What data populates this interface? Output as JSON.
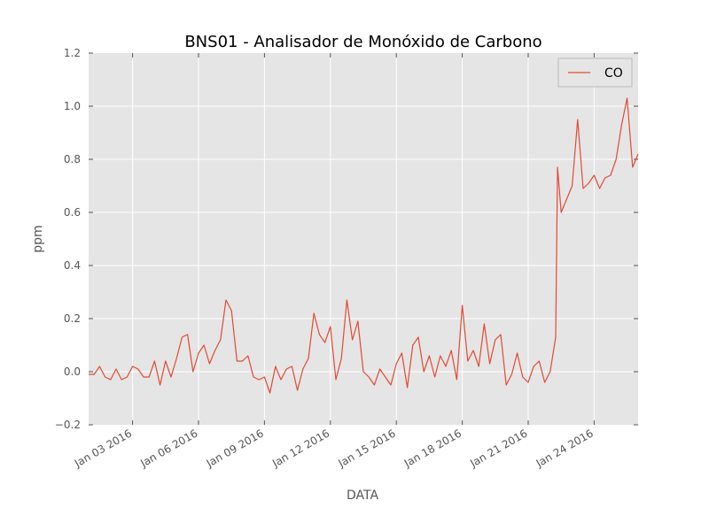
{
  "chart_data": {
    "type": "line",
    "title": "BNS01 - Analisador de Monóxido de Carbono",
    "xlabel": "DATA",
    "ylabel": "ppm",
    "xlim": [
      "2016-01-01",
      "2016-01-26"
    ],
    "ylim": [
      -0.2,
      1.2
    ],
    "yticks": [
      -0.2,
      0.0,
      0.2,
      0.4,
      0.6,
      0.8,
      1.0,
      1.2
    ],
    "ytick_labels": [
      "−0.2",
      "0.0",
      "0.2",
      "0.4",
      "0.6",
      "0.8",
      "1.0",
      "1.2"
    ],
    "xticks": [
      "2016-01-03",
      "2016-01-06",
      "2016-01-09",
      "2016-01-12",
      "2016-01-15",
      "2016-01-18",
      "2016-01-21",
      "2016-01-24"
    ],
    "xtick_labels": [
      "Jan 03 2016",
      "Jan 06 2016",
      "Jan 09 2016",
      "Jan 12 2016",
      "Jan 15 2016",
      "Jan 18 2016",
      "Jan 21 2016",
      "Jan 24 2016"
    ],
    "grid": true,
    "legend_position": "top-right",
    "series": [
      {
        "name": "CO",
        "color": "#e24a33",
        "points": [
          [
            "2016-01-01T00:00",
            -0.01
          ],
          [
            "2016-01-01T06:00",
            -0.01
          ],
          [
            "2016-01-01T12:00",
            0.02
          ],
          [
            "2016-01-01T18:00",
            -0.02
          ],
          [
            "2016-01-02T00:00",
            -0.03
          ],
          [
            "2016-01-02T06:00",
            0.01
          ],
          [
            "2016-01-02T12:00",
            -0.03
          ],
          [
            "2016-01-02T18:00",
            -0.02
          ],
          [
            "2016-01-03T00:00",
            0.02
          ],
          [
            "2016-01-03T06:00",
            0.01
          ],
          [
            "2016-01-03T12:00",
            -0.02
          ],
          [
            "2016-01-03T18:00",
            -0.02
          ],
          [
            "2016-01-04T00:00",
            0.04
          ],
          [
            "2016-01-04T06:00",
            -0.05
          ],
          [
            "2016-01-04T12:00",
            0.04
          ],
          [
            "2016-01-04T18:00",
            -0.02
          ],
          [
            "2016-01-05T00:00",
            0.05
          ],
          [
            "2016-01-05T06:00",
            0.13
          ],
          [
            "2016-01-05T12:00",
            0.14
          ],
          [
            "2016-01-05T18:00",
            0.0
          ],
          [
            "2016-01-06T00:00",
            0.07
          ],
          [
            "2016-01-06T06:00",
            0.1
          ],
          [
            "2016-01-06T12:00",
            0.03
          ],
          [
            "2016-01-06T18:00",
            0.08
          ],
          [
            "2016-01-07T00:00",
            0.12
          ],
          [
            "2016-01-07T06:00",
            0.27
          ],
          [
            "2016-01-07T12:00",
            0.23
          ],
          [
            "2016-01-07T18:00",
            0.04
          ],
          [
            "2016-01-08T00:00",
            0.04
          ],
          [
            "2016-01-08T06:00",
            0.06
          ],
          [
            "2016-01-08T12:00",
            -0.02
          ],
          [
            "2016-01-08T18:00",
            -0.03
          ],
          [
            "2016-01-09T00:00",
            -0.02
          ],
          [
            "2016-01-09T06:00",
            -0.08
          ],
          [
            "2016-01-09T12:00",
            0.02
          ],
          [
            "2016-01-09T18:00",
            -0.03
          ],
          [
            "2016-01-10T00:00",
            0.01
          ],
          [
            "2016-01-10T06:00",
            0.02
          ],
          [
            "2016-01-10T12:00",
            -0.07
          ],
          [
            "2016-01-10T18:00",
            0.01
          ],
          [
            "2016-01-11T00:00",
            0.05
          ],
          [
            "2016-01-11T06:00",
            0.22
          ],
          [
            "2016-01-11T12:00",
            0.14
          ],
          [
            "2016-01-11T18:00",
            0.11
          ],
          [
            "2016-01-12T00:00",
            0.17
          ],
          [
            "2016-01-12T06:00",
            -0.03
          ],
          [
            "2016-01-12T12:00",
            0.05
          ],
          [
            "2016-01-12T18:00",
            0.27
          ],
          [
            "2016-01-13T00:00",
            0.12
          ],
          [
            "2016-01-13T06:00",
            0.19
          ],
          [
            "2016-01-13T12:00",
            0.0
          ],
          [
            "2016-01-13T18:00",
            -0.02
          ],
          [
            "2016-01-14T00:00",
            -0.05
          ],
          [
            "2016-01-14T06:00",
            0.01
          ],
          [
            "2016-01-14T12:00",
            -0.02
          ],
          [
            "2016-01-14T18:00",
            -0.05
          ],
          [
            "2016-01-15T00:00",
            0.03
          ],
          [
            "2016-01-15T06:00",
            0.07
          ],
          [
            "2016-01-15T12:00",
            -0.06
          ],
          [
            "2016-01-15T18:00",
            0.1
          ],
          [
            "2016-01-16T00:00",
            0.13
          ],
          [
            "2016-01-16T06:00",
            0.0
          ],
          [
            "2016-01-16T12:00",
            0.06
          ],
          [
            "2016-01-16T18:00",
            -0.02
          ],
          [
            "2016-01-17T00:00",
            0.06
          ],
          [
            "2016-01-17T06:00",
            0.02
          ],
          [
            "2016-01-17T12:00",
            0.08
          ],
          [
            "2016-01-17T18:00",
            -0.03
          ],
          [
            "2016-01-18T00:00",
            0.25
          ],
          [
            "2016-01-18T06:00",
            0.04
          ],
          [
            "2016-01-18T12:00",
            0.08
          ],
          [
            "2016-01-18T18:00",
            0.02
          ],
          [
            "2016-01-19T00:00",
            0.18
          ],
          [
            "2016-01-19T06:00",
            0.03
          ],
          [
            "2016-01-19T12:00",
            0.12
          ],
          [
            "2016-01-19T18:00",
            0.14
          ],
          [
            "2016-01-20T00:00",
            -0.05
          ],
          [
            "2016-01-20T06:00",
            -0.01
          ],
          [
            "2016-01-20T12:00",
            0.07
          ],
          [
            "2016-01-20T18:00",
            -0.02
          ],
          [
            "2016-01-21T00:00",
            -0.04
          ],
          [
            "2016-01-21T06:00",
            0.02
          ],
          [
            "2016-01-21T12:00",
            0.04
          ],
          [
            "2016-01-21T18:00",
            -0.04
          ],
          [
            "2016-01-22T00:00",
            0.0
          ],
          [
            "2016-01-22T06:00",
            0.13
          ],
          [
            "2016-01-22T08:00",
            0.77
          ],
          [
            "2016-01-22T12:00",
            0.6
          ],
          [
            "2016-01-22T18:00",
            0.65
          ],
          [
            "2016-01-23T00:00",
            0.7
          ],
          [
            "2016-01-23T06:00",
            0.95
          ],
          [
            "2016-01-23T12:00",
            0.69
          ],
          [
            "2016-01-23T18:00",
            0.71
          ],
          [
            "2016-01-24T00:00",
            0.74
          ],
          [
            "2016-01-24T06:00",
            0.69
          ],
          [
            "2016-01-24T12:00",
            0.73
          ],
          [
            "2016-01-24T18:00",
            0.74
          ],
          [
            "2016-01-25T00:00",
            0.8
          ],
          [
            "2016-01-25T06:00",
            0.93
          ],
          [
            "2016-01-25T12:00",
            1.03
          ],
          [
            "2016-01-25T18:00",
            0.77
          ],
          [
            "2016-01-26T00:00",
            0.82
          ]
        ]
      }
    ]
  }
}
